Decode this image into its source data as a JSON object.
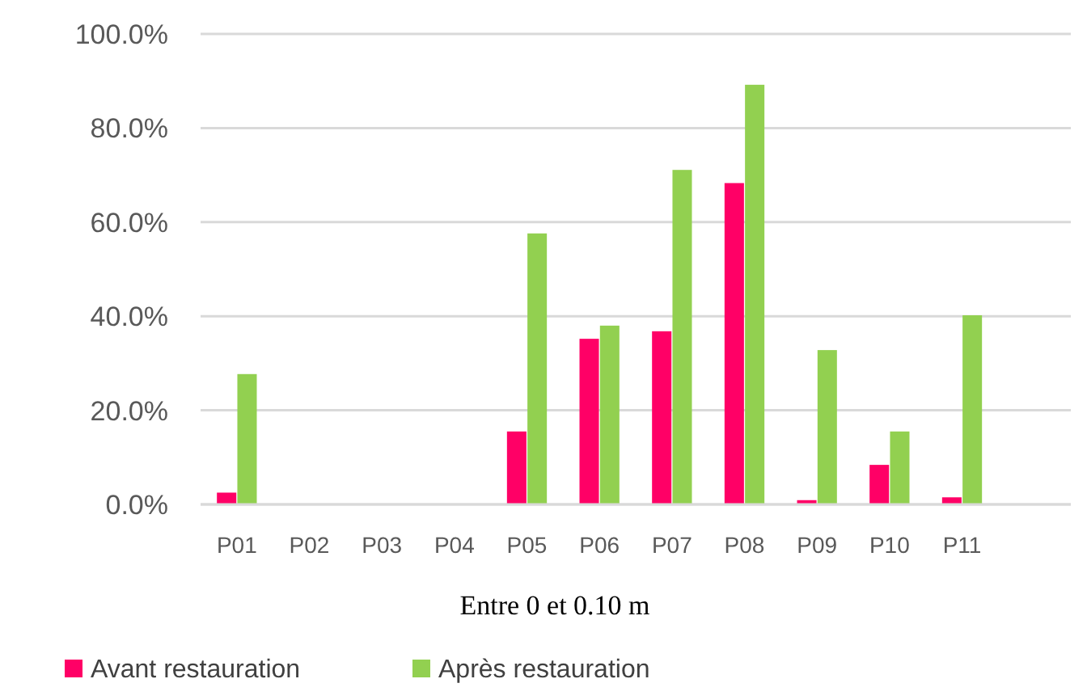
{
  "chart_data": {
    "type": "bar",
    "xlabel": "Entre 0 et 0.10 m",
    "categories": [
      "P01",
      "P02",
      "P03",
      "P04",
      "P05",
      "P06",
      "P07",
      "P08",
      "P09",
      "P10",
      "P11",
      null
    ],
    "series": [
      {
        "name": "Avant restauration",
        "color": "#ff0066",
        "values": [
          2.5,
          0,
          0,
          0,
          15.5,
          35.2,
          36.8,
          68.3,
          0.9,
          8.4,
          1.5,
          null
        ]
      },
      {
        "name": "Après restauration",
        "color": "#92d050",
        "values": [
          27.7,
          0,
          0,
          0,
          57.6,
          38.0,
          71.1,
          89.2,
          32.8,
          15.5,
          40.2,
          null
        ]
      }
    ],
    "ylim": [
      0,
      100
    ],
    "yticks": [
      {
        "value": 0,
        "label": "0.0%"
      },
      {
        "value": 20,
        "label": "20.0%"
      },
      {
        "value": 40,
        "label": "40.0%"
      },
      {
        "value": 60,
        "label": "60.0%"
      },
      {
        "value": 80,
        "label": "80.0%"
      },
      {
        "value": 100,
        "label": "100.0%"
      }
    ],
    "grid": "y",
    "legend": "bottom"
  }
}
